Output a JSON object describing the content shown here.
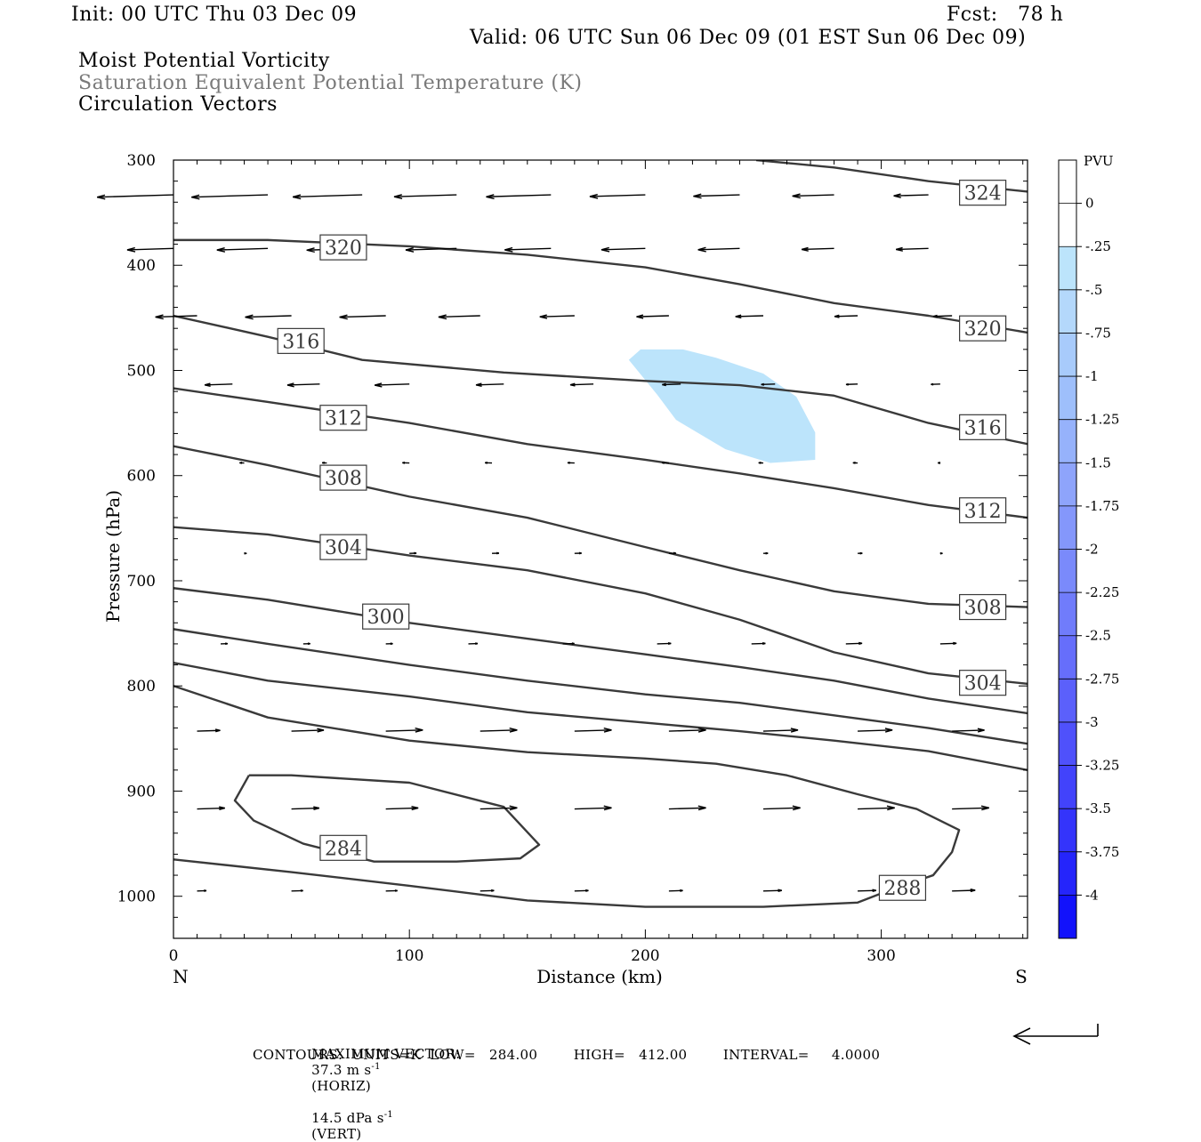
{
  "header": {
    "init": "Init: 00 UTC Thu 03 Dec 09",
    "fcst": "Fcst:   78 h",
    "valid": "Valid: 06 UTC Sun 06 Dec 09 (01 EST Sun 06 Dec 09)"
  },
  "titles": {
    "line1": "Moist Potential Vorticity",
    "line2": "Saturation Equivalent Potential Temperature (K)",
    "line3": "Circulation Vectors"
  },
  "footer": {
    "max_vector_label": "MAXIMUM VECTOR:",
    "horiz": "37.3 m s",
    "horiz_unit": "(HORIZ)",
    "vert": "14.5 dPa s",
    "vert_unit": "(VERT)",
    "contours": "CONTOURS:  UNITS=K  LOW=   284.00        HIGH=   412.00        INTERVAL=     4.0000"
  },
  "chart_data": {
    "type": "contour",
    "xlabel": "Distance (km)",
    "ylabel": "Pressure (hPa)",
    "xlim": [
      0,
      362
    ],
    "ylim": [
      300,
      1040
    ],
    "x_ticks": [
      0,
      100,
      200,
      300
    ],
    "y_ticks": [
      300,
      400,
      500,
      600,
      700,
      800,
      900,
      1000
    ],
    "x_end_labels": {
      "left": "N",
      "right": "S"
    },
    "pv_shading": {
      "fill": "#bce4fb",
      "polygon": [
        [
          193,
          490
        ],
        [
          198,
          480
        ],
        [
          216,
          480
        ],
        [
          230,
          488
        ],
        [
          250,
          503
        ],
        [
          264,
          525
        ],
        [
          272,
          559
        ],
        [
          272,
          585
        ],
        [
          253,
          588
        ],
        [
          234,
          575
        ],
        [
          213,
          547
        ],
        [
          205,
          523
        ]
      ]
    },
    "contours": [
      {
        "level": 324,
        "points": [
          [
            247,
            300
          ],
          [
            280,
            307
          ],
          [
            320,
            320
          ],
          [
            362,
            330
          ]
        ],
        "labels": [
          {
            "text": "324",
            "x": 343,
            "y": 331
          }
        ]
      },
      {
        "level": 320,
        "points": [
          [
            0,
            376
          ],
          [
            40,
            376
          ],
          [
            100,
            382
          ],
          [
            150,
            390
          ],
          [
            200,
            402
          ],
          [
            240,
            418
          ],
          [
            280,
            436
          ],
          [
            320,
            448
          ],
          [
            362,
            464
          ]
        ],
        "labels": [
          {
            "text": "320",
            "x": 72,
            "y": 383
          },
          {
            "text": "320",
            "x": 343,
            "y": 460
          }
        ]
      },
      {
        "level": 316,
        "points": [
          [
            0,
            448
          ],
          [
            40,
            468
          ],
          [
            80,
            490
          ],
          [
            140,
            502
          ],
          [
            200,
            510
          ],
          [
            240,
            514
          ],
          [
            280,
            524
          ],
          [
            320,
            550
          ],
          [
            362,
            570
          ]
        ],
        "labels": [
          {
            "text": "316",
            "x": 54,
            "y": 472
          },
          {
            "text": "316",
            "x": 343,
            "y": 554
          }
        ]
      },
      {
        "level": 312,
        "points": [
          [
            0,
            517
          ],
          [
            40,
            530
          ],
          [
            100,
            550
          ],
          [
            150,
            570
          ],
          [
            200,
            585
          ],
          [
            240,
            598
          ],
          [
            280,
            612
          ],
          [
            320,
            628
          ],
          [
            362,
            640
          ]
        ],
        "labels": [
          {
            "text": "312",
            "x": 72,
            "y": 545
          },
          {
            "text": "312",
            "x": 343,
            "y": 633
          }
        ]
      },
      {
        "level": 308,
        "points": [
          [
            0,
            572
          ],
          [
            40,
            590
          ],
          [
            100,
            620
          ],
          [
            150,
            640
          ],
          [
            200,
            668
          ],
          [
            240,
            690
          ],
          [
            280,
            710
          ],
          [
            320,
            722
          ],
          [
            362,
            725
          ]
        ],
        "labels": [
          {
            "text": "308",
            "x": 72,
            "y": 602
          },
          {
            "text": "308",
            "x": 343,
            "y": 725
          }
        ]
      },
      {
        "level": 304,
        "points": [
          [
            0,
            649
          ],
          [
            40,
            656
          ],
          [
            100,
            676
          ],
          [
            150,
            690
          ],
          [
            200,
            712
          ],
          [
            240,
            737
          ],
          [
            280,
            768
          ],
          [
            320,
            788
          ],
          [
            362,
            798
          ]
        ],
        "labels": [
          {
            "text": "304",
            "x": 72,
            "y": 668
          },
          {
            "text": "304",
            "x": 343,
            "y": 797
          }
        ]
      },
      {
        "level": 300,
        "points": [
          [
            0,
            707
          ],
          [
            40,
            718
          ],
          [
            100,
            740
          ],
          [
            150,
            755
          ],
          [
            200,
            770
          ],
          [
            240,
            782
          ],
          [
            280,
            795
          ],
          [
            320,
            812
          ],
          [
            362,
            826
          ]
        ],
        "labels": [
          {
            "text": "300",
            "x": 90,
            "y": 734
          }
        ]
      },
      {
        "level": 296,
        "points": [
          [
            0,
            746
          ],
          [
            40,
            760
          ],
          [
            100,
            780
          ],
          [
            150,
            795
          ],
          [
            200,
            808
          ],
          [
            240,
            816
          ],
          [
            280,
            828
          ],
          [
            320,
            840
          ],
          [
            362,
            855
          ]
        ],
        "labels": []
      },
      {
        "level": 292,
        "points": [
          [
            0,
            778
          ],
          [
            40,
            795
          ],
          [
            100,
            810
          ],
          [
            150,
            825
          ],
          [
            200,
            835
          ],
          [
            240,
            843
          ],
          [
            280,
            852
          ],
          [
            320,
            862
          ],
          [
            362,
            880
          ]
        ],
        "labels": []
      },
      {
        "level": 288,
        "points": [
          [
            0,
            800
          ],
          [
            40,
            830
          ],
          [
            100,
            852
          ],
          [
            150,
            863
          ],
          [
            200,
            869
          ],
          [
            230,
            874
          ],
          [
            260,
            885
          ],
          [
            290,
            903
          ],
          [
            315,
            917
          ],
          [
            333,
            937
          ],
          [
            330,
            958
          ],
          [
            322,
            980
          ],
          [
            305,
            993
          ],
          [
            290,
            1006
          ],
          [
            250,
            1010
          ],
          [
            200,
            1010
          ],
          [
            150,
            1004
          ],
          [
            100,
            990
          ],
          [
            50,
            977
          ],
          [
            0,
            965
          ]
        ],
        "labels": [
          {
            "text": "288",
            "x": 309,
            "y": 992
          }
        ]
      },
      {
        "level": 284,
        "points": [
          [
            32,
            885
          ],
          [
            50,
            885
          ],
          [
            100,
            892
          ],
          [
            140,
            915
          ],
          [
            155,
            951
          ],
          [
            147,
            964
          ],
          [
            120,
            967
          ],
          [
            85,
            967
          ],
          [
            55,
            950
          ],
          [
            34,
            928
          ],
          [
            26,
            909
          ],
          [
            32,
            885
          ]
        ],
        "labels": [
          {
            "text": "284",
            "x": 72,
            "y": 954
          }
        ]
      }
    ],
    "vectors": {
      "color": "#000000",
      "rows": [
        {
          "p": 333,
          "x": [
            0,
            40,
            80,
            120,
            160,
            200,
            240,
            280,
            320
          ],
          "dx": [
            -33,
            -33,
            -30,
            -27,
            -28,
            -24,
            -20,
            -18,
            -15
          ]
        },
        {
          "p": 384,
          "x": [
            0,
            40,
            80,
            120,
            160,
            200,
            240,
            280,
            320
          ],
          "dx": [
            -20,
            -22,
            -24,
            -22,
            -20,
            -19,
            -18,
            -14,
            -14
          ]
        },
        {
          "p": 448,
          "x": [
            10,
            50,
            90,
            130,
            170,
            210,
            250,
            290,
            330
          ],
          "dx": [
            -18,
            -20,
            -20,
            -18,
            -15,
            -14,
            -12,
            -10,
            -8
          ]
        },
        {
          "p": 513,
          "x": [
            25,
            62,
            100,
            140,
            178,
            215,
            255,
            290,
            325
          ],
          "dx": [
            -12,
            -14,
            -15,
            -12,
            -10,
            -8,
            -6,
            -5,
            -4
          ]
        },
        {
          "p": 588,
          "x": [
            30,
            65,
            100,
            135,
            170,
            210,
            250,
            290,
            325
          ],
          "dx": [
            -2,
            -2,
            -3,
            -3,
            -3,
            -3,
            -2,
            -2,
            -1
          ]
        },
        {
          "p": 674,
          "x": [
            30,
            65,
            100,
            135,
            170,
            210,
            250,
            290,
            325
          ],
          "dx": [
            1,
            2,
            3,
            3,
            3,
            3,
            2,
            2,
            1
          ]
        },
        {
          "p": 760,
          "x": [
            20,
            55,
            90,
            125,
            165,
            205,
            245,
            285,
            325
          ],
          "dx": [
            3,
            3,
            3,
            4,
            5,
            6,
            6,
            7,
            7
          ]
        },
        {
          "p": 843,
          "x": [
            10,
            50,
            90,
            130,
            170,
            210,
            250,
            290,
            330
          ],
          "dx": [
            10,
            14,
            16,
            16,
            16,
            16,
            15,
            15,
            14
          ]
        },
        {
          "p": 917,
          "x": [
            10,
            50,
            90,
            130,
            170,
            210,
            250,
            290,
            330
          ],
          "dx": [
            12,
            12,
            14,
            16,
            16,
            16,
            16,
            16,
            16
          ]
        },
        {
          "p": 995,
          "x": [
            10,
            50,
            90,
            130,
            170,
            210,
            250,
            290,
            330
          ],
          "dx": [
            4,
            5,
            5,
            6,
            6,
            6,
            8,
            8,
            10
          ]
        }
      ]
    },
    "colorbar": {
      "label": "PVU",
      "ticks": [
        "0",
        "-.25",
        "-.5",
        "-.75",
        "-1",
        "-1.25",
        "-1.5",
        "-1.75",
        "-2",
        "-2.25",
        "-2.5",
        "-2.75",
        "-3",
        "-3.25",
        "-3.5",
        "-3.75",
        "-4"
      ],
      "colors": [
        "#ffffff",
        "#ffffff",
        "#bce4fb",
        "#b4d8fb",
        "#a8cbfb",
        "#9ebffb",
        "#96b2fb",
        "#8ea4fb",
        "#8497fb",
        "#7a8afb",
        "#707cfb",
        "#666efb",
        "#5b60fb",
        "#4f51fb",
        "#4243fb",
        "#3434fb",
        "#2525fb",
        "#1212fb"
      ]
    }
  }
}
